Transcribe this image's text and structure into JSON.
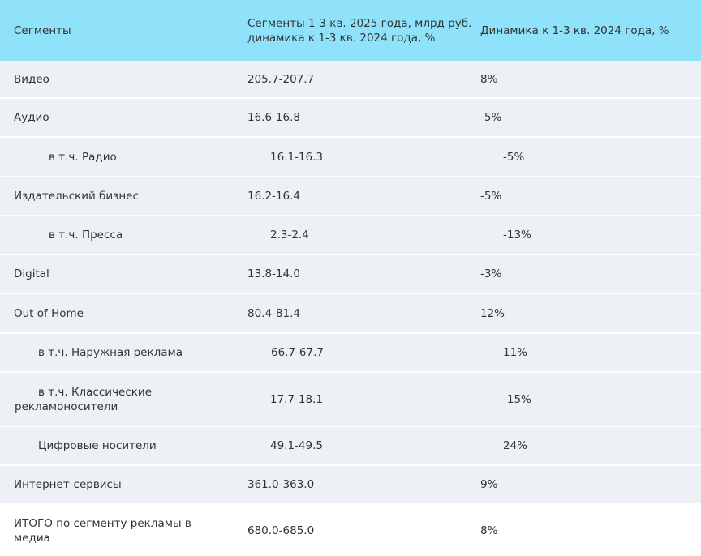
{
  "table": {
    "header": [
      "Сегменты",
      "Сегменты 1-3 кв. 2025 года, млрд руб. динамика к 1-3 кв. 2024 года, %",
      "Динамика к 1-3 кв. 2024 года, %"
    ],
    "rows": [
      [
        "Видео",
        "205.7-207.7",
        "8%"
      ],
      [
        "Аудио",
        "16.6-16.8",
        "-5%"
      ],
      [
        "в т.ч. Радио",
        "16.1-16.3",
        "-5%"
      ],
      [
        "Издательский бизнес",
        "16.2-16.4",
        "-5%"
      ],
      [
        "в т.ч. Пресса",
        "2.3-2.4",
        "-13%"
      ],
      [
        "Digital",
        "13.8-14.0",
        "-3%"
      ],
      [
        "Out of Home",
        "80.4-81.4",
        "12%"
      ],
      [
        "в т.ч. Наружная реклама",
        "66.7-67.7",
        "11%"
      ],
      [
        "в т.ч. Классические рекламоносители",
        "17.7-18.1",
        "-15%"
      ],
      [
        "Цифровые носители",
        "49.1-49.5",
        "24%"
      ],
      [
        "Интернет-сервисы",
        "361.0-363.0",
        "9%"
      ],
      [
        "ИТОГО по сегменту рекламы в медиа",
        "680.0-685.0",
        "8%"
      ]
    ]
  }
}
